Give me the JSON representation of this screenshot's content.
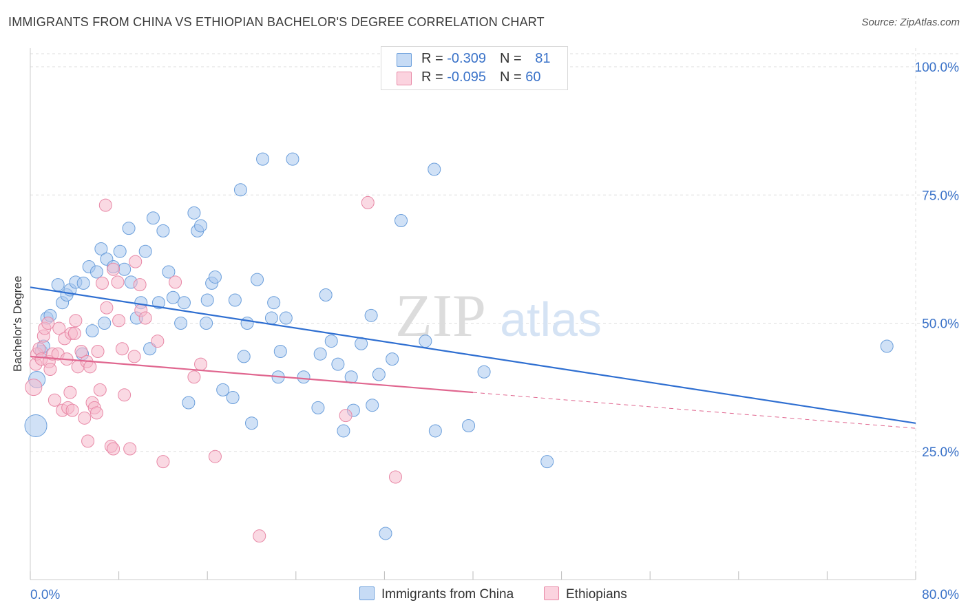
{
  "title": "IMMIGRANTS FROM CHINA VS ETHIOPIAN BACHELOR'S DEGREE CORRELATION CHART",
  "source": "Source: ZipAtlas.com",
  "watermark": {
    "zip": "ZIP",
    "atlas": "atlas"
  },
  "legend_top": [
    {
      "r_label": "R = ",
      "r_value": "-0.309",
      "n_label": "N = ",
      "n_value": "81",
      "color": "#a9c8ef"
    },
    {
      "r_label": "R = ",
      "r_value": "-0.095",
      "n_label": "N = ",
      "n_value": "60",
      "color": "#f6b9cc"
    }
  ],
  "chart_data": {
    "type": "scatter",
    "title": "IMMIGRANTS FROM CHINA VS ETHIOPIAN BACHELOR'S DEGREE CORRELATION CHART",
    "xlabel": "",
    "ylabel": "Bachelor's Degree",
    "xlim": [
      0,
      80
    ],
    "ylim": [
      0,
      105
    ],
    "x_tick_labels": [
      "0.0%",
      "80.0%"
    ],
    "y_ticks": [
      25,
      50,
      75,
      100
    ],
    "y_tick_labels": [
      "25.0%",
      "50.0%",
      "75.0%",
      "100.0%"
    ],
    "grid": true,
    "legend_position": "bottom-center",
    "series": [
      {
        "name": "Immigrants from China",
        "color": "#6a9edb",
        "fill": "#a9c8ef",
        "trend": {
          "x": [
            0,
            80
          ],
          "y": [
            57.0,
            30.5
          ]
        },
        "points": [
          [
            0.5,
            30
          ],
          [
            0.6,
            39
          ],
          [
            1.0,
            44.5
          ],
          [
            1.2,
            45.5
          ],
          [
            1.5,
            51
          ],
          [
            1.8,
            51.5
          ],
          [
            2.5,
            57.5
          ],
          [
            2.9,
            54
          ],
          [
            3.3,
            55.5
          ],
          [
            3.6,
            56.5
          ],
          [
            4.1,
            58
          ],
          [
            4.8,
            57.8
          ],
          [
            4.7,
            44
          ],
          [
            5.3,
            61
          ],
          [
            5.6,
            48.5
          ],
          [
            6.0,
            60
          ],
          [
            6.4,
            64.5
          ],
          [
            6.7,
            50
          ],
          [
            6.9,
            62.5
          ],
          [
            7.5,
            61
          ],
          [
            8.1,
            64
          ],
          [
            8.5,
            60.5
          ],
          [
            8.9,
            68.5
          ],
          [
            9.1,
            58
          ],
          [
            9.6,
            51
          ],
          [
            10.0,
            54
          ],
          [
            10.4,
            64
          ],
          [
            10.8,
            45
          ],
          [
            11.1,
            70.5
          ],
          [
            11.6,
            54
          ],
          [
            12.0,
            68
          ],
          [
            12.5,
            60
          ],
          [
            12.9,
            55
          ],
          [
            13.6,
            50
          ],
          [
            13.9,
            54
          ],
          [
            14.3,
            34.5
          ],
          [
            14.8,
            71.5
          ],
          [
            15.1,
            68
          ],
          [
            15.4,
            69
          ],
          [
            15.9,
            50
          ],
          [
            16.0,
            54.5
          ],
          [
            16.4,
            57.8
          ],
          [
            16.7,
            59
          ],
          [
            17.4,
            37
          ],
          [
            18.3,
            35.5
          ],
          [
            18.5,
            54.5
          ],
          [
            19.0,
            76
          ],
          [
            19.3,
            43.5
          ],
          [
            19.6,
            50
          ],
          [
            20.0,
            30.5
          ],
          [
            20.5,
            58.5
          ],
          [
            21.0,
            82
          ],
          [
            21.8,
            51
          ],
          [
            22.0,
            54
          ],
          [
            22.4,
            39.5
          ],
          [
            22.6,
            44.5
          ],
          [
            23.1,
            51
          ],
          [
            23.7,
            82
          ],
          [
            24.7,
            39.5
          ],
          [
            26.0,
            33.5
          ],
          [
            26.2,
            44
          ],
          [
            26.7,
            55.5
          ],
          [
            27.2,
            46.5
          ],
          [
            27.8,
            42
          ],
          [
            28.3,
            29
          ],
          [
            29.0,
            39.5
          ],
          [
            29.2,
            33
          ],
          [
            29.9,
            46
          ],
          [
            30.8,
            51.5
          ],
          [
            30.9,
            34
          ],
          [
            31.5,
            40
          ],
          [
            32.1,
            9
          ],
          [
            32.7,
            43
          ],
          [
            33.5,
            70
          ],
          [
            35.7,
            46.5
          ],
          [
            36.5,
            80
          ],
          [
            36.6,
            29
          ],
          [
            39.6,
            30
          ],
          [
            41.0,
            40.5
          ],
          [
            46.7,
            23
          ],
          [
            77.4,
            45.5
          ]
        ]
      },
      {
        "name": "Ethiopians",
        "color": "#e888a6",
        "fill": "#f6b9cc",
        "trend": {
          "x": [
            0,
            40
          ],
          "y": [
            43.5,
            36.5
          ],
          "dashed_to": [
            80,
            29.5
          ]
        },
        "points": [
          [
            0.3,
            37.5
          ],
          [
            0.5,
            42
          ],
          [
            0.6,
            44
          ],
          [
            0.8,
            45
          ],
          [
            1.0,
            43
          ],
          [
            1.2,
            47.5
          ],
          [
            1.3,
            49
          ],
          [
            1.6,
            50
          ],
          [
            1.7,
            42.5
          ],
          [
            1.8,
            41
          ],
          [
            2.0,
            44
          ],
          [
            2.2,
            35
          ],
          [
            2.5,
            44
          ],
          [
            2.6,
            49
          ],
          [
            2.9,
            33
          ],
          [
            3.1,
            47
          ],
          [
            3.3,
            43
          ],
          [
            3.4,
            33.5
          ],
          [
            3.6,
            36.5
          ],
          [
            3.7,
            48
          ],
          [
            3.8,
            33
          ],
          [
            4.0,
            48
          ],
          [
            4.1,
            50.5
          ],
          [
            4.3,
            41.5
          ],
          [
            4.6,
            44.5
          ],
          [
            4.9,
            31.5
          ],
          [
            5.1,
            42.5
          ],
          [
            5.2,
            27
          ],
          [
            5.4,
            41.5
          ],
          [
            5.6,
            34.5
          ],
          [
            5.8,
            33.5
          ],
          [
            6.0,
            32.5
          ],
          [
            6.1,
            44.5
          ],
          [
            6.3,
            37
          ],
          [
            6.5,
            57.8
          ],
          [
            6.8,
            73
          ],
          [
            6.9,
            53
          ],
          [
            7.3,
            26
          ],
          [
            7.5,
            25.5
          ],
          [
            7.5,
            60.5
          ],
          [
            7.9,
            58
          ],
          [
            8.0,
            50.5
          ],
          [
            8.3,
            45
          ],
          [
            8.5,
            36
          ],
          [
            9.0,
            25.5
          ],
          [
            9.4,
            43.5
          ],
          [
            9.5,
            62
          ],
          [
            9.9,
            57.5
          ],
          [
            10.0,
            52.5
          ],
          [
            10.4,
            51
          ],
          [
            11.5,
            46.5
          ],
          [
            12.0,
            23
          ],
          [
            13.1,
            58
          ],
          [
            14.8,
            39.5
          ],
          [
            15.4,
            42
          ],
          [
            16.7,
            24
          ],
          [
            20.7,
            8.5
          ],
          [
            28.5,
            32
          ],
          [
            30.5,
            73.5
          ],
          [
            33.0,
            20
          ]
        ]
      }
    ]
  },
  "bottom_legend": [
    "Immigrants from China",
    "Ethiopians"
  ]
}
